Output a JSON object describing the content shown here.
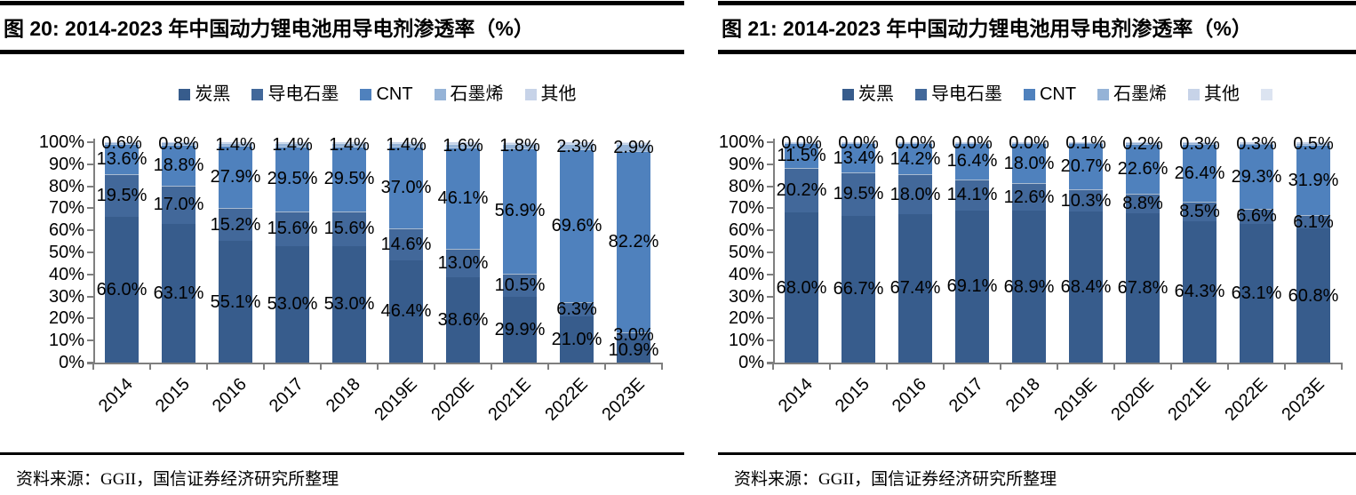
{
  "panels": [
    {
      "title": "图 20: 2014-2023 年中国动力锂电池用导电剂渗透率（%）",
      "source": "资料来源：GGII，国信证券经济研究所整理"
    },
    {
      "title": "图 21: 2014-2023 年中国动力锂电池用导电剂渗透率（%）",
      "source": "资料来源：GGII，国信证券经济研究所整理"
    }
  ],
  "chart_data": [
    {
      "type": "bar",
      "stacked": true,
      "title": "图 20: 2014-2023 年中国动力锂电池用导电剂渗透率（%）",
      "categories": [
        "2014",
        "2015",
        "2016",
        "2017",
        "2018",
        "2019E",
        "2020E",
        "2021E",
        "2022E",
        "2023E"
      ],
      "series": [
        {
          "name": "炭黑",
          "color": "#375C8C",
          "show_labels": true,
          "values": [
            66.0,
            63.1,
            55.1,
            53.0,
            53.0,
            46.4,
            38.6,
            29.9,
            21.0,
            10.9
          ]
        },
        {
          "name": "导电石墨",
          "color": "#42689A",
          "show_labels": true,
          "values": [
            19.5,
            17.0,
            15.2,
            15.6,
            15.6,
            14.6,
            13.0,
            10.5,
            6.3,
            3.0
          ]
        },
        {
          "name": "CNT",
          "color": "#4F81BD",
          "show_labels": true,
          "values": [
            13.6,
            18.8,
            27.9,
            29.5,
            29.5,
            37.0,
            46.1,
            56.9,
            69.6,
            82.2
          ]
        },
        {
          "name": "石墨烯",
          "color": "#95B3D7",
          "show_labels": true,
          "values": [
            0.6,
            0.8,
            1.4,
            1.4,
            1.4,
            1.4,
            1.6,
            1.8,
            2.3,
            2.9
          ]
        },
        {
          "name": "其他",
          "color": "#C7D3E8",
          "show_labels": false,
          "values": [
            0.3,
            0.3,
            0.4,
            0.5,
            0.5,
            0.6,
            0.7,
            0.9,
            0.8,
            1.0
          ]
        }
      ],
      "extra_legend_swatch": null,
      "xlabel": "",
      "ylabel": "",
      "ylim": [
        0,
        100
      ],
      "ytick_labels": [
        "0%",
        "10%",
        "20%",
        "30%",
        "40%",
        "50%",
        "60%",
        "70%",
        "80%",
        "90%",
        "100%"
      ],
      "grid": false,
      "legend_position": "top",
      "label_format": "0.0%"
    },
    {
      "type": "bar",
      "stacked": true,
      "title": "图 21: 2014-2023 年中国动力锂电池用导电剂渗透率（%）",
      "categories": [
        "2014",
        "2015",
        "2016",
        "2017",
        "2018",
        "2019E",
        "2020E",
        "2021E",
        "2022E",
        "2023E"
      ],
      "series": [
        {
          "name": "炭黑",
          "color": "#375C8C",
          "show_labels": true,
          "values": [
            68.0,
            66.7,
            67.4,
            69.1,
            68.9,
            68.4,
            67.8,
            64.3,
            63.1,
            60.8
          ]
        },
        {
          "name": "导电石墨",
          "color": "#42689A",
          "show_labels": true,
          "values": [
            20.2,
            19.5,
            18.0,
            14.1,
            12.6,
            10.3,
            8.8,
            8.5,
            6.6,
            6.1
          ]
        },
        {
          "name": "CNT",
          "color": "#4F81BD",
          "show_labels": true,
          "values": [
            11.5,
            13.4,
            14.2,
            16.4,
            18.0,
            20.7,
            22.6,
            26.4,
            29.3,
            31.9
          ]
        },
        {
          "name": "石墨烯",
          "color": "#95B3D7",
          "show_labels": true,
          "values": [
            0.0,
            0.0,
            0.0,
            0.0,
            0.0,
            0.1,
            0.2,
            0.3,
            0.3,
            0.5
          ]
        },
        {
          "name": "其他",
          "color": "#C7D3E8",
          "show_labels": false,
          "values": [
            0.3,
            0.4,
            0.4,
            0.4,
            0.5,
            0.5,
            0.6,
            0.5,
            0.7,
            0.7
          ]
        }
      ],
      "extra_legend_swatch": {
        "label": "",
        "color": "#DCE4F1"
      },
      "xlabel": "",
      "ylabel": "",
      "ylim": [
        0,
        100
      ],
      "ytick_labels": [
        "0%",
        "10%",
        "20%",
        "30%",
        "40%",
        "50%",
        "60%",
        "70%",
        "80%",
        "90%",
        "100%"
      ],
      "grid": false,
      "legend_position": "top",
      "label_format": "0.0%"
    }
  ]
}
